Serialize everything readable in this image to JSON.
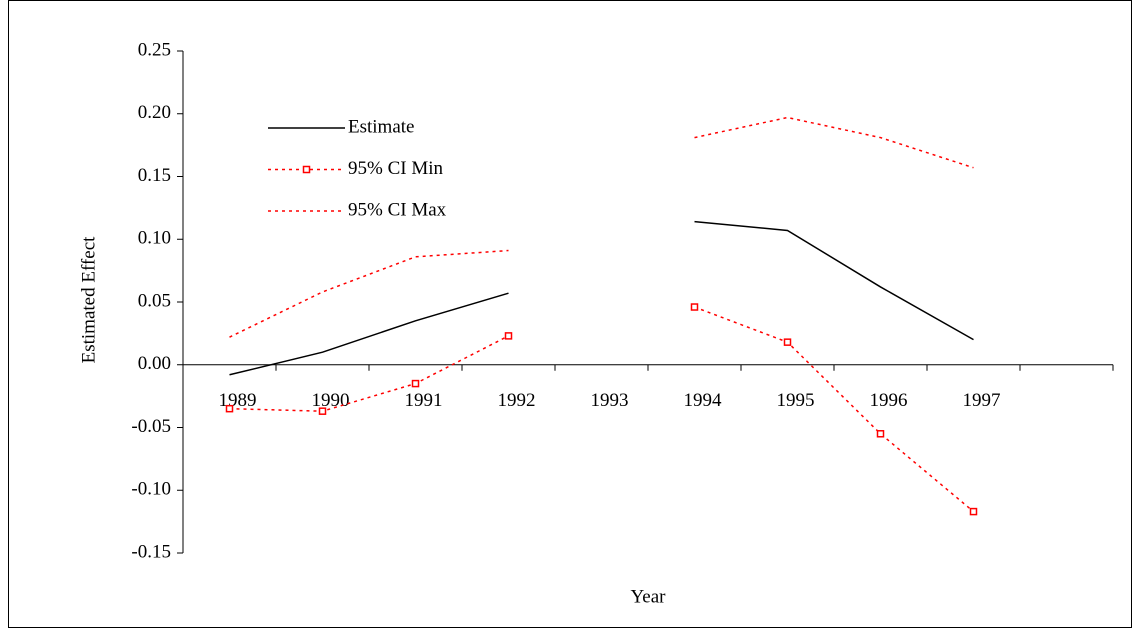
{
  "chart_data": {
    "type": "line",
    "x_label": "Year",
    "y_label": "Estimated Effect",
    "categories": [
      "1989",
      "1990",
      "1991",
      "1992",
      "1993",
      "1994",
      "1995",
      "1996",
      "1997",
      null
    ],
    "series": [
      {
        "name": "Estimate",
        "color": "#000000",
        "dash": "solid",
        "marker": "none",
        "values": [
          -0.008,
          0.01,
          0.035,
          0.057,
          null,
          0.114,
          0.107,
          0.062,
          0.02,
          null
        ]
      },
      {
        "name": "95% CI Min",
        "color": "#ff0000",
        "dash": "dotted",
        "marker": "square",
        "values": [
          -0.035,
          -0.037,
          -0.015,
          0.023,
          null,
          0.046,
          0.018,
          -0.055,
          -0.117,
          null
        ]
      },
      {
        "name": "95% CI Max",
        "color": "#ff0000",
        "dash": "dotted",
        "marker": "none",
        "values": [
          0.022,
          0.058,
          0.086,
          0.091,
          null,
          0.181,
          0.197,
          0.181,
          0.157,
          null
        ]
      }
    ],
    "ylim": [
      -0.15,
      0.25
    ],
    "yticks": [
      {
        "value": -0.15,
        "label": "-0.15"
      },
      {
        "value": -0.1,
        "label": "-0.10"
      },
      -0.05,
      {
        "value": 0,
        "label": "0.00"
      },
      0.05,
      {
        "value": 0.1,
        "label": "0.10"
      },
      0.15,
      {
        "value": 0.2,
        "label": "0.20"
      },
      0.25
    ],
    "legend": "upper left",
    "grid": false
  }
}
